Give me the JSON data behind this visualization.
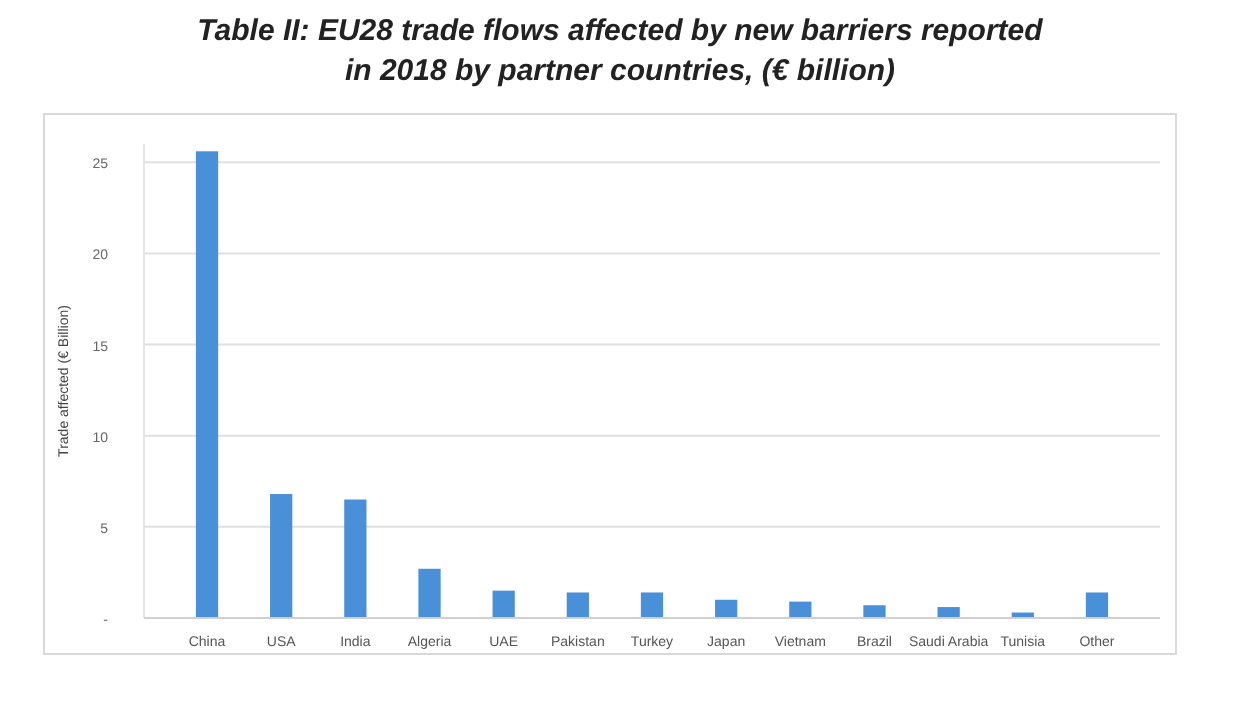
{
  "chart_data": {
    "type": "bar",
    "title": "Table II: EU28 trade flows affected by new barriers reported in 2018 by partner countries, (€ billion)",
    "ylabel": "Trade affected (€ Billion)",
    "categories": [
      "China",
      "USA",
      "India",
      "Algeria",
      "UAE",
      "Pakistan",
      "Turkey",
      "Japan",
      "Vietnam",
      "Brazil",
      "Saudi Arabia",
      "Tunisia",
      "Other"
    ],
    "values": [
      25.6,
      6.8,
      6.5,
      2.7,
      1.5,
      1.4,
      1.4,
      1.0,
      0.9,
      0.7,
      0.6,
      0.3,
      1.4
    ],
    "color": "#4a90d9",
    "ylim": [
      0,
      26
    ],
    "yticks": [
      {
        "value": 0,
        "label": "-"
      },
      5,
      10,
      15,
      20,
      25
    ],
    "grid": "y"
  }
}
